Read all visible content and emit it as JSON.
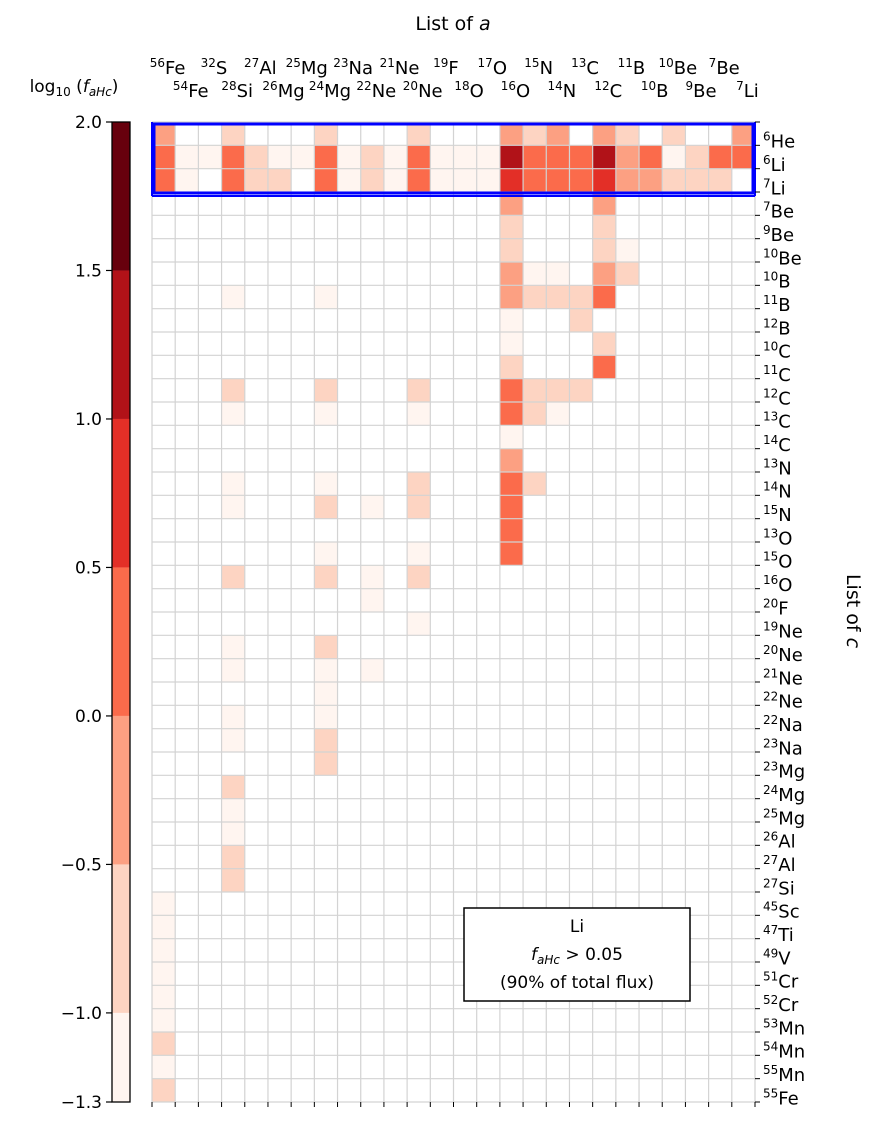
{
  "chart_data": {
    "type": "heatmap",
    "title_top": "List of a",
    "ylabel_right": "List of c",
    "colorbar": {
      "label": "log10 (f_aHc)",
      "range": [
        -1.3,
        2.0
      ],
      "bounds": [
        -1.3,
        -1.0,
        -0.5,
        0.0,
        0.5,
        1.0,
        1.5,
        2.0
      ],
      "colors": [
        "#fff5f0",
        "#fdd4c2",
        "#fca082",
        "#fb6b4b",
        "#e32f27",
        "#b11218",
        "#67000d"
      ],
      "ticks": [
        {
          "value": 2.0,
          "label": "2.0"
        },
        {
          "value": 1.5,
          "label": "1.5"
        },
        {
          "value": 1.0,
          "label": "1.0"
        },
        {
          "value": 0.5,
          "label": "0.5"
        },
        {
          "value": 0.0,
          "label": "0.0"
        },
        {
          "value": -0.5,
          "label": "−0.5"
        },
        {
          "value": -1.0,
          "label": "−1.0"
        },
        {
          "value": -1.3,
          "label": "−1.3"
        }
      ]
    },
    "x_labels": [
      {
        "mass": "56",
        "el": "Fe"
      },
      {
        "mass": "54",
        "el": "Fe"
      },
      {
        "mass": "32",
        "el": "S"
      },
      {
        "mass": "28",
        "el": "Si"
      },
      {
        "mass": "27",
        "el": "Al"
      },
      {
        "mass": "26",
        "el": "Mg"
      },
      {
        "mass": "25",
        "el": "Mg"
      },
      {
        "mass": "24",
        "el": "Mg"
      },
      {
        "mass": "23",
        "el": "Na"
      },
      {
        "mass": "22",
        "el": "Ne"
      },
      {
        "mass": "21",
        "el": "Ne"
      },
      {
        "mass": "20",
        "el": "Ne"
      },
      {
        "mass": "19",
        "el": "F"
      },
      {
        "mass": "18",
        "el": "O"
      },
      {
        "mass": "17",
        "el": "O"
      },
      {
        "mass": "16",
        "el": "O"
      },
      {
        "mass": "15",
        "el": "N"
      },
      {
        "mass": "14",
        "el": "N"
      },
      {
        "mass": "13",
        "el": "C"
      },
      {
        "mass": "12",
        "el": "C"
      },
      {
        "mass": "11",
        "el": "B"
      },
      {
        "mass": "10",
        "el": "B"
      },
      {
        "mass": "10",
        "el": "Be"
      },
      {
        "mass": "9",
        "el": "Be"
      },
      {
        "mass": "7",
        "el": "Be"
      },
      {
        "mass": "7",
        "el": "Li"
      }
    ],
    "y_labels": [
      {
        "mass": "6",
        "el": "He"
      },
      {
        "mass": "6",
        "el": "Li"
      },
      {
        "mass": "7",
        "el": "Li"
      },
      {
        "mass": "7",
        "el": "Be"
      },
      {
        "mass": "9",
        "el": "Be"
      },
      {
        "mass": "10",
        "el": "Be"
      },
      {
        "mass": "10",
        "el": "B"
      },
      {
        "mass": "11",
        "el": "B"
      },
      {
        "mass": "12",
        "el": "B"
      },
      {
        "mass": "10",
        "el": "C"
      },
      {
        "mass": "11",
        "el": "C"
      },
      {
        "mass": "12",
        "el": "C"
      },
      {
        "mass": "13",
        "el": "C"
      },
      {
        "mass": "14",
        "el": "C"
      },
      {
        "mass": "13",
        "el": "N"
      },
      {
        "mass": "14",
        "el": "N"
      },
      {
        "mass": "15",
        "el": "N"
      },
      {
        "mass": "13",
        "el": "O"
      },
      {
        "mass": "15",
        "el": "O"
      },
      {
        "mass": "16",
        "el": "O"
      },
      {
        "mass": "20",
        "el": "F"
      },
      {
        "mass": "19",
        "el": "Ne"
      },
      {
        "mass": "20",
        "el": "Ne"
      },
      {
        "mass": "21",
        "el": "Ne"
      },
      {
        "mass": "22",
        "el": "Ne"
      },
      {
        "mass": "22",
        "el": "Na"
      },
      {
        "mass": "23",
        "el": "Na"
      },
      {
        "mass": "23",
        "el": "Mg"
      },
      {
        "mass": "24",
        "el": "Mg"
      },
      {
        "mass": "25",
        "el": "Mg"
      },
      {
        "mass": "26",
        "el": "Al"
      },
      {
        "mass": "27",
        "el": "Al"
      },
      {
        "mass": "27",
        "el": "Si"
      },
      {
        "mass": "45",
        "el": "Sc"
      },
      {
        "mass": "47",
        "el": "Ti"
      },
      {
        "mass": "49",
        "el": "V"
      },
      {
        "mass": "51",
        "el": "Cr"
      },
      {
        "mass": "52",
        "el": "Cr"
      },
      {
        "mass": "53",
        "el": "Mn"
      },
      {
        "mass": "54",
        "el": "Mn"
      },
      {
        "mass": "55",
        "el": "Mn"
      },
      {
        "mass": "55",
        "el": "Fe"
      }
    ],
    "cells": [
      [
        0,
        0,
        -0.5
      ],
      [
        3,
        0,
        -0.9
      ],
      [
        7,
        0,
        -0.9
      ],
      [
        11,
        0,
        -0.9
      ],
      [
        15,
        0,
        -0.2
      ],
      [
        16,
        0,
        -0.9
      ],
      [
        17,
        0,
        -0.2
      ],
      [
        19,
        0,
        -0.2
      ],
      [
        20,
        0,
        -0.9
      ],
      [
        22,
        0,
        -0.9
      ],
      [
        25,
        0,
        -0.2
      ],
      [
        0,
        1,
        0.2
      ],
      [
        1,
        1,
        -1.2
      ],
      [
        2,
        1,
        -1.2
      ],
      [
        3,
        1,
        0.2
      ],
      [
        4,
        1,
        -0.8
      ],
      [
        5,
        1,
        -1.2
      ],
      [
        6,
        1,
        -1.2
      ],
      [
        7,
        1,
        0.2
      ],
      [
        8,
        1,
        -1.2
      ],
      [
        9,
        1,
        -0.8
      ],
      [
        10,
        1,
        -1.2
      ],
      [
        11,
        1,
        0.2
      ],
      [
        12,
        1,
        -1.2
      ],
      [
        13,
        1,
        -1.2
      ],
      [
        14,
        1,
        -1.2
      ],
      [
        15,
        1,
        1.3
      ],
      [
        16,
        1,
        0.4
      ],
      [
        17,
        1,
        0.4
      ],
      [
        18,
        1,
        0.4
      ],
      [
        19,
        1,
        1.3
      ],
      [
        20,
        1,
        -0.3
      ],
      [
        21,
        1,
        0.2
      ],
      [
        22,
        1,
        -1.2
      ],
      [
        23,
        1,
        -0.8
      ],
      [
        24,
        1,
        0.2
      ],
      [
        25,
        1,
        0.2
      ],
      [
        0,
        2,
        0.2
      ],
      [
        1,
        2,
        -1.2
      ],
      [
        3,
        2,
        0.2
      ],
      [
        4,
        2,
        -0.8
      ],
      [
        5,
        2,
        -0.8
      ],
      [
        7,
        2,
        0.2
      ],
      [
        8,
        2,
        -1.2
      ],
      [
        9,
        2,
        -0.8
      ],
      [
        10,
        2,
        -1.2
      ],
      [
        11,
        2,
        0.2
      ],
      [
        12,
        2,
        -1.2
      ],
      [
        13,
        2,
        -1.2
      ],
      [
        14,
        2,
        -1.2
      ],
      [
        15,
        2,
        0.8
      ],
      [
        16,
        2,
        0.4
      ],
      [
        17,
        2,
        0.4
      ],
      [
        18,
        2,
        0.4
      ],
      [
        19,
        2,
        0.8
      ],
      [
        20,
        2,
        -0.3
      ],
      [
        21,
        2,
        -0.3
      ],
      [
        22,
        2,
        -0.8
      ],
      [
        23,
        2,
        -0.8
      ],
      [
        24,
        2,
        -0.8
      ],
      [
        15,
        3,
        -0.3
      ],
      [
        19,
        3,
        -0.3
      ],
      [
        15,
        4,
        -0.8
      ],
      [
        19,
        4,
        -0.8
      ],
      [
        15,
        5,
        -0.8
      ],
      [
        19,
        5,
        -0.8
      ],
      [
        20,
        5,
        -1.2
      ],
      [
        15,
        6,
        -0.3
      ],
      [
        16,
        6,
        -1.2
      ],
      [
        17,
        6,
        -1.2
      ],
      [
        19,
        6,
        -0.3
      ],
      [
        20,
        6,
        -0.8
      ],
      [
        3,
        7,
        -1.2
      ],
      [
        7,
        7,
        -1.2
      ],
      [
        15,
        7,
        -0.3
      ],
      [
        16,
        7,
        -0.8
      ],
      [
        17,
        7,
        -0.8
      ],
      [
        18,
        7,
        -0.8
      ],
      [
        19,
        7,
        0.2
      ],
      [
        15,
        8,
        -1.2
      ],
      [
        18,
        8,
        -0.8
      ],
      [
        15,
        9,
        -1.2
      ],
      [
        19,
        9,
        -0.8
      ],
      [
        15,
        10,
        -0.8
      ],
      [
        19,
        10,
        0.2
      ],
      [
        3,
        11,
        -0.8
      ],
      [
        7,
        11,
        -0.8
      ],
      [
        11,
        11,
        -0.8
      ],
      [
        15,
        11,
        0.2
      ],
      [
        16,
        11,
        -0.8
      ],
      [
        17,
        11,
        -0.8
      ],
      [
        18,
        11,
        -0.8
      ],
      [
        3,
        12,
        -1.2
      ],
      [
        7,
        12,
        -1.2
      ],
      [
        11,
        12,
        -1.2
      ],
      [
        15,
        12,
        0.2
      ],
      [
        16,
        12,
        -0.8
      ],
      [
        17,
        12,
        -1.2
      ],
      [
        15,
        13,
        -1.2
      ],
      [
        15,
        14,
        -0.3
      ],
      [
        3,
        15,
        -1.2
      ],
      [
        7,
        15,
        -1.2
      ],
      [
        11,
        15,
        -0.8
      ],
      [
        15,
        15,
        0.2
      ],
      [
        16,
        15,
        -0.8
      ],
      [
        3,
        16,
        -1.2
      ],
      [
        7,
        16,
        -0.8
      ],
      [
        9,
        16,
        -1.2
      ],
      [
        11,
        16,
        -0.8
      ],
      [
        15,
        16,
        0.2
      ],
      [
        15,
        17,
        0.2
      ],
      [
        7,
        18,
        -1.2
      ],
      [
        11,
        18,
        -1.2
      ],
      [
        15,
        18,
        0.2
      ],
      [
        3,
        19,
        -0.8
      ],
      [
        7,
        19,
        -0.8
      ],
      [
        9,
        19,
        -1.2
      ],
      [
        11,
        19,
        -0.8
      ],
      [
        9,
        20,
        -1.2
      ],
      [
        11,
        21,
        -1.2
      ],
      [
        3,
        22,
        -1.2
      ],
      [
        7,
        22,
        -0.8
      ],
      [
        3,
        23,
        -1.2
      ],
      [
        7,
        23,
        -1.2
      ],
      [
        9,
        23,
        -1.2
      ],
      [
        7,
        24,
        -1.2
      ],
      [
        3,
        25,
        -1.2
      ],
      [
        7,
        25,
        -1.2
      ],
      [
        3,
        26,
        -1.2
      ],
      [
        7,
        26,
        -0.8
      ],
      [
        7,
        27,
        -0.8
      ],
      [
        3,
        28,
        -0.8
      ],
      [
        3,
        29,
        -1.2
      ],
      [
        3,
        30,
        -1.2
      ],
      [
        3,
        31,
        -0.8
      ],
      [
        3,
        32,
        -0.8
      ],
      [
        0,
        33,
        -1.2
      ],
      [
        0,
        34,
        -1.2
      ],
      [
        0,
        35,
        -1.2
      ],
      [
        0,
        36,
        -1.2
      ],
      [
        0,
        37,
        -1.2
      ],
      [
        0,
        38,
        -1.2
      ],
      [
        0,
        39,
        -0.8
      ],
      [
        0,
        40,
        -1.2
      ],
      [
        0,
        41,
        -0.8
      ]
    ],
    "highlight_rows": [
      "6He",
      "6Li",
      "7Li"
    ],
    "annotation": {
      "line1": "Li",
      "line2_symbol": "f_aHc",
      "line2_rest": "> 0.05",
      "line3": "(90% of total flux)"
    }
  }
}
